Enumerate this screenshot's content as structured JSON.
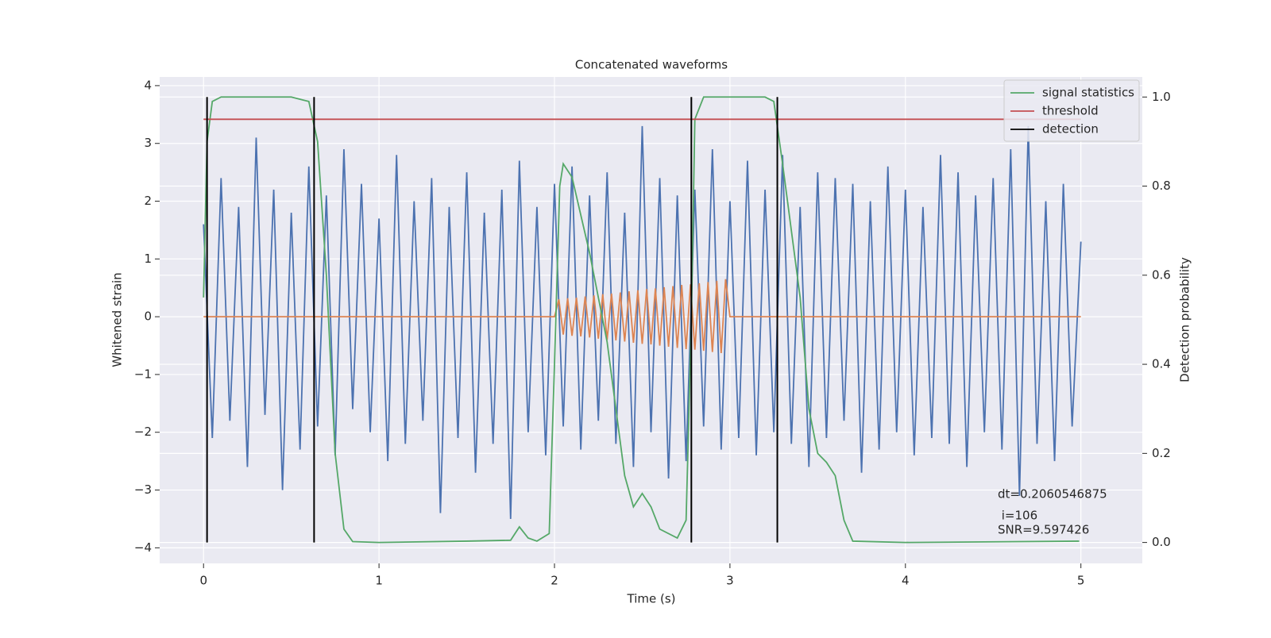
{
  "chart_data": {
    "type": "line",
    "title": "Concatenated waveforms",
    "xlabel": "Time (s)",
    "ylabel": "Whitened strain",
    "y2label": "Detection probability",
    "xlim": [
      -0.25,
      5.35
    ],
    "ylim": [
      -4.27,
      4.15
    ],
    "y2lim": [
      -0.047,
      1.045
    ],
    "xticks": [
      0,
      1,
      2,
      3,
      4,
      5
    ],
    "yticks": [
      {
        "value": -4,
        "label": "−4"
      },
      {
        "value": -3,
        "label": "−3"
      },
      {
        "value": -2,
        "label": "−2"
      },
      {
        "value": -1,
        "label": "−1"
      },
      0,
      1,
      2,
      3,
      4
    ],
    "y2ticks": [
      {
        "value": 0,
        "label": "0.0"
      },
      0.2,
      0.4,
      0.6,
      0.8,
      {
        "value": 1,
        "label": "1.0"
      }
    ],
    "grid": true,
    "legend": "upper right",
    "series": [
      {
        "color": "#4c72b0",
        "x": [
          0,
          0.05,
          0.1,
          0.15,
          0.2,
          0.25,
          0.3,
          0.35,
          0.4,
          0.45,
          0.5,
          0.55,
          0.6,
          0.65,
          0.7,
          0.75,
          0.8,
          0.85,
          0.9,
          0.95,
          1,
          1.05,
          1.1,
          1.15,
          1.2,
          1.25,
          1.3,
          1.35,
          1.4,
          1.45,
          1.5,
          1.55,
          1.6,
          1.65,
          1.7,
          1.75,
          1.8,
          1.85,
          1.9,
          1.95,
          2,
          2.05,
          2.1,
          2.15,
          2.2,
          2.25,
          2.3,
          2.35,
          2.4,
          2.45,
          2.5,
          2.55,
          2.6,
          2.65,
          2.7,
          2.75,
          2.8,
          2.85,
          2.9,
          2.95,
          3,
          3.05,
          3.1,
          3.15,
          3.2,
          3.25,
          3.3,
          3.35,
          3.4,
          3.45,
          3.5,
          3.55,
          3.6,
          3.65,
          3.7,
          3.75,
          3.8,
          3.85,
          3.9,
          3.95,
          4,
          4.05,
          4.1,
          4.15,
          4.2,
          4.25,
          4.3,
          4.35,
          4.4,
          4.45,
          4.5,
          4.55,
          4.6,
          4.65,
          4.7,
          4.75,
          4.8,
          4.85,
          4.9,
          4.95,
          5
        ],
        "values": [
          1.6,
          -2.1,
          2.4,
          -1.8,
          1.9,
          -2.6,
          3.1,
          -1.7,
          2.2,
          -3.0,
          1.8,
          -2.3,
          2.6,
          -1.9,
          2.1,
          -2.4,
          2.9,
          -1.6,
          2.3,
          -2.0,
          1.7,
          -2.5,
          2.8,
          -2.2,
          2.0,
          -1.8,
          2.4,
          -3.4,
          1.9,
          -2.1,
          2.5,
          -2.7,
          1.8,
          -2.2,
          2.2,
          -3.5,
          2.7,
          -2.0,
          1.9,
          -2.4,
          2.3,
          -1.9,
          2.6,
          -2.3,
          2.1,
          -1.8,
          2.5,
          -2.2,
          1.8,
          -2.6,
          3.3,
          -2.0,
          2.4,
          -2.8,
          2.1,
          -2.5,
          2.2,
          -1.9,
          2.9,
          -2.3,
          2.0,
          -2.1,
          2.7,
          -2.4,
          2.2,
          -2.0,
          2.8,
          -2.2,
          1.9,
          -2.6,
          2.5,
          -2.1,
          2.4,
          -1.8,
          2.3,
          -2.7,
          2.0,
          -2.3,
          2.6,
          -2.0,
          2.2,
          -2.4,
          1.9,
          -2.1,
          2.8,
          -2.2,
          2.5,
          -2.6,
          2.1,
          -2.0,
          2.4,
          -2.3,
          2.9,
          -3.1,
          3.3,
          -2.2,
          2.0,
          -2.5,
          2.3,
          -1.9,
          1.3
        ]
      },
      {
        "color": "#dd8452",
        "x": [
          0,
          2,
          2.025,
          2.05,
          2.075,
          2.1,
          2.125,
          2.15,
          2.175,
          2.2,
          2.225,
          2.25,
          2.275,
          2.3,
          2.325,
          2.35,
          2.375,
          2.4,
          2.425,
          2.45,
          2.475,
          2.5,
          2.525,
          2.55,
          2.575,
          2.6,
          2.625,
          2.65,
          2.675,
          2.7,
          2.725,
          2.75,
          2.775,
          2.8,
          2.825,
          2.85,
          2.875,
          2.9,
          2.925,
          2.95,
          2.975,
          3,
          5
        ],
        "values": [
          0,
          0,
          0.3,
          -0.31,
          0.32,
          -0.33,
          0.33,
          -0.34,
          0.35,
          -0.36,
          0.37,
          -0.38,
          0.39,
          -0.4,
          0.4,
          -0.41,
          0.42,
          -0.43,
          0.44,
          -0.45,
          0.46,
          -0.47,
          0.48,
          -0.48,
          0.49,
          -0.5,
          0.51,
          -0.52,
          0.53,
          -0.54,
          0.55,
          -0.56,
          0.56,
          -0.57,
          0.58,
          -0.59,
          0.6,
          -0.61,
          0.62,
          -0.63,
          0.65,
          0,
          0
        ]
      },
      {
        "name": "signal statistics",
        "color": "#55a868",
        "axis": "y2",
        "x": [
          0,
          0.02,
          0.05,
          0.1,
          0.5,
          0.6,
          0.65,
          0.7,
          0.75,
          0.8,
          0.85,
          1.0,
          1.5,
          1.75,
          1.8,
          1.85,
          1.9,
          1.97,
          2.0,
          2.03,
          2.05,
          2.1,
          2.2,
          2.3,
          2.4,
          2.45,
          2.5,
          2.55,
          2.6,
          2.7,
          2.75,
          2.78,
          2.8,
          2.85,
          3.2,
          3.25,
          3.3,
          3.4,
          3.45,
          3.5,
          3.55,
          3.6,
          3.65,
          3.7,
          4.0,
          4.99
        ],
        "values": [
          0.55,
          0.9,
          0.99,
          1.0,
          1.0,
          0.99,
          0.9,
          0.6,
          0.2,
          0.03,
          0.002,
          0.0,
          0.003,
          0.005,
          0.035,
          0.01,
          0.003,
          0.02,
          0.4,
          0.8,
          0.85,
          0.82,
          0.65,
          0.45,
          0.15,
          0.08,
          0.11,
          0.08,
          0.03,
          0.01,
          0.05,
          0.5,
          0.95,
          1.0,
          1.0,
          0.99,
          0.85,
          0.55,
          0.3,
          0.2,
          0.18,
          0.15,
          0.05,
          0.003,
          0.0,
          0.003
        ]
      },
      {
        "name": "threshold",
        "color": "#c44e52",
        "axis": "y2",
        "x": [
          0,
          5
        ],
        "values": [
          0.95,
          0.95
        ]
      },
      {
        "name": "detection",
        "color": "#000000",
        "axis": "y2",
        "type": "vlines",
        "x": [
          0.02,
          0.63,
          2.78,
          3.27
        ],
        "ymin": 0,
        "ymax": 1
      }
    ],
    "annotations": [
      "dt=0.2060546875",
      " i=106",
      "SNR=9.597426"
    ]
  }
}
